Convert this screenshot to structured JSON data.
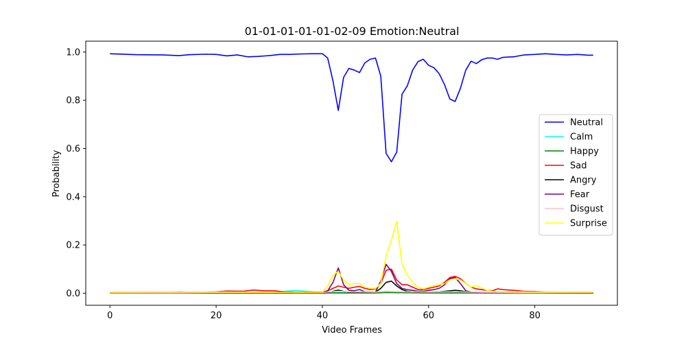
{
  "chart_data": {
    "type": "line",
    "title": "01-01-01-01-01-02-09 Emotion:Neutral",
    "xlabel": "Video Frames",
    "ylabel": "Probability",
    "xlim": [
      -4.55,
      95.55
    ],
    "ylim": [
      -0.05,
      1.045
    ],
    "xticks": [
      0,
      20,
      40,
      60,
      80
    ],
    "yticks": [
      0.0,
      0.2,
      0.4,
      0.6,
      0.8,
      1.0
    ],
    "xtick_labels": [
      "0",
      "20",
      "40",
      "60",
      "80"
    ],
    "ytick_labels": [
      "0.0",
      "0.2",
      "0.4",
      "0.6",
      "0.8",
      "1.0"
    ],
    "grid": false,
    "legend_position": "center-right",
    "series": [
      {
        "name": "Neutral",
        "color": "#0000ff",
        "points": [
          [
            0,
            0.993
          ],
          [
            5,
            0.989
          ],
          [
            10,
            0.988
          ],
          [
            13,
            0.985
          ],
          [
            15,
            0.989
          ],
          [
            18,
            0.991
          ],
          [
            20,
            0.99
          ],
          [
            22,
            0.984
          ],
          [
            24,
            0.988
          ],
          [
            26,
            0.98
          ],
          [
            28,
            0.982
          ],
          [
            30,
            0.985
          ],
          [
            32,
            0.99
          ],
          [
            34,
            0.99
          ],
          [
            36,
            0.992
          ],
          [
            38,
            0.993
          ],
          [
            40,
            0.993
          ],
          [
            41,
            0.975
          ],
          [
            42,
            0.88
          ],
          [
            43,
            0.758
          ],
          [
            44,
            0.895
          ],
          [
            45,
            0.932
          ],
          [
            46,
            0.925
          ],
          [
            47,
            0.915
          ],
          [
            48,
            0.955
          ],
          [
            49,
            0.97
          ],
          [
            50,
            0.975
          ],
          [
            51,
            0.9
          ],
          [
            52,
            0.58
          ],
          [
            53,
            0.545
          ],
          [
            54,
            0.585
          ],
          [
            55,
            0.825
          ],
          [
            56,
            0.86
          ],
          [
            57,
            0.925
          ],
          [
            58,
            0.96
          ],
          [
            59,
            0.97
          ],
          [
            60,
            0.945
          ],
          [
            61,
            0.935
          ],
          [
            62,
            0.91
          ],
          [
            63,
            0.865
          ],
          [
            64,
            0.805
          ],
          [
            65,
            0.795
          ],
          [
            66,
            0.85
          ],
          [
            67,
            0.925
          ],
          [
            68,
            0.962
          ],
          [
            69,
            0.952
          ],
          [
            70,
            0.968
          ],
          [
            71,
            0.975
          ],
          [
            72,
            0.975
          ],
          [
            73,
            0.97
          ],
          [
            74,
            0.978
          ],
          [
            76,
            0.98
          ],
          [
            78,
            0.988
          ],
          [
            80,
            0.99
          ],
          [
            82,
            0.993
          ],
          [
            84,
            0.99
          ],
          [
            86,
            0.988
          ],
          [
            88,
            0.99
          ],
          [
            90,
            0.987
          ],
          [
            91,
            0.987
          ]
        ]
      },
      {
        "name": "Calm",
        "color": "#00ffff",
        "points": [
          [
            0,
            0.002
          ],
          [
            10,
            0.003
          ],
          [
            13,
            0.007
          ],
          [
            15,
            0.005
          ],
          [
            20,
            0.004
          ],
          [
            25,
            0.004
          ],
          [
            30,
            0.003
          ],
          [
            33,
            0.008
          ],
          [
            35,
            0.011
          ],
          [
            38,
            0.006
          ],
          [
            40,
            0.003
          ],
          [
            42,
            0.002
          ],
          [
            50,
            0.002
          ],
          [
            55,
            0.002
          ],
          [
            60,
            0.002
          ],
          [
            65,
            0.002
          ],
          [
            70,
            0.002
          ],
          [
            80,
            0.003
          ],
          [
            85,
            0.005
          ],
          [
            91,
            0.004
          ]
        ]
      },
      {
        "name": "Happy",
        "color": "#008000",
        "points": [
          [
            0,
            0.001
          ],
          [
            20,
            0.001
          ],
          [
            40,
            0.001
          ],
          [
            50,
            0.001
          ],
          [
            52,
            0.003
          ],
          [
            55,
            0.002
          ],
          [
            60,
            0.001
          ],
          [
            70,
            0.001
          ],
          [
            80,
            0.001
          ],
          [
            91,
            0.001
          ]
        ]
      },
      {
        "name": "Sad",
        "color": "#ff0000",
        "points": [
          [
            0,
            0.002
          ],
          [
            10,
            0.003
          ],
          [
            15,
            0.003
          ],
          [
            20,
            0.006
          ],
          [
            22,
            0.009
          ],
          [
            25,
            0.008
          ],
          [
            27,
            0.013
          ],
          [
            29,
            0.01
          ],
          [
            31,
            0.01
          ],
          [
            33,
            0.005
          ],
          [
            36,
            0.004
          ],
          [
            40,
            0.005
          ],
          [
            41,
            0.01
          ],
          [
            42,
            0.02
          ],
          [
            43,
            0.03
          ],
          [
            44,
            0.025
          ],
          [
            45,
            0.02
          ],
          [
            46,
            0.025
          ],
          [
            47,
            0.028
          ],
          [
            48,
            0.02
          ],
          [
            49,
            0.015
          ],
          [
            50,
            0.018
          ],
          [
            51,
            0.04
          ],
          [
            52,
            0.095
          ],
          [
            53,
            0.1
          ],
          [
            54,
            0.055
          ],
          [
            55,
            0.035
          ],
          [
            56,
            0.035
          ],
          [
            57,
            0.025
          ],
          [
            58,
            0.015
          ],
          [
            59,
            0.015
          ],
          [
            60,
            0.02
          ],
          [
            61,
            0.025
          ],
          [
            62,
            0.03
          ],
          [
            63,
            0.045
          ],
          [
            64,
            0.065
          ],
          [
            65,
            0.07
          ],
          [
            66,
            0.06
          ],
          [
            67,
            0.04
          ],
          [
            68,
            0.025
          ],
          [
            69,
            0.018
          ],
          [
            70,
            0.015
          ],
          [
            71,
            0.012
          ],
          [
            72,
            0.01
          ],
          [
            73,
            0.018
          ],
          [
            74,
            0.015
          ],
          [
            76,
            0.012
          ],
          [
            78,
            0.008
          ],
          [
            80,
            0.007
          ],
          [
            82,
            0.005
          ],
          [
            84,
            0.005
          ],
          [
            86,
            0.004
          ],
          [
            88,
            0.004
          ],
          [
            91,
            0.003
          ]
        ]
      },
      {
        "name": "Angry",
        "color": "#000000",
        "points": [
          [
            0,
            0.001
          ],
          [
            20,
            0.001
          ],
          [
            40,
            0.001
          ],
          [
            41,
            0.003
          ],
          [
            42,
            0.008
          ],
          [
            43,
            0.013
          ],
          [
            44,
            0.008
          ],
          [
            45,
            0.005
          ],
          [
            46,
            0.005
          ],
          [
            48,
            0.004
          ],
          [
            50,
            0.005
          ],
          [
            51,
            0.02
          ],
          [
            52,
            0.045
          ],
          [
            53,
            0.05
          ],
          [
            54,
            0.03
          ],
          [
            55,
            0.015
          ],
          [
            56,
            0.008
          ],
          [
            58,
            0.004
          ],
          [
            60,
            0.005
          ],
          [
            62,
            0.006
          ],
          [
            63,
            0.008
          ],
          [
            64,
            0.01
          ],
          [
            65,
            0.012
          ],
          [
            66,
            0.01
          ],
          [
            67,
            0.006
          ],
          [
            68,
            0.004
          ],
          [
            70,
            0.003
          ],
          [
            75,
            0.002
          ],
          [
            80,
            0.002
          ],
          [
            91,
            0.001
          ]
        ]
      },
      {
        "name": "Fear",
        "color": "#800080",
        "points": [
          [
            0,
            0.001
          ],
          [
            20,
            0.001
          ],
          [
            40,
            0.001
          ],
          [
            41,
            0.01
          ],
          [
            42,
            0.045
          ],
          [
            43,
            0.105
          ],
          [
            44,
            0.035
          ],
          [
            45,
            0.012
          ],
          [
            46,
            0.01
          ],
          [
            47,
            0.015
          ],
          [
            48,
            0.006
          ],
          [
            50,
            0.005
          ],
          [
            51,
            0.05
          ],
          [
            52,
            0.12
          ],
          [
            53,
            0.09
          ],
          [
            54,
            0.04
          ],
          [
            55,
            0.02
          ],
          [
            56,
            0.015
          ],
          [
            57,
            0.012
          ],
          [
            58,
            0.008
          ],
          [
            59,
            0.008
          ],
          [
            60,
            0.012
          ],
          [
            61,
            0.015
          ],
          [
            62,
            0.02
          ],
          [
            63,
            0.035
          ],
          [
            64,
            0.06
          ],
          [
            65,
            0.065
          ],
          [
            66,
            0.04
          ],
          [
            67,
            0.01
          ],
          [
            68,
            0.005
          ],
          [
            70,
            0.003
          ],
          [
            75,
            0.002
          ],
          [
            80,
            0.002
          ],
          [
            91,
            0.001
          ]
        ]
      },
      {
        "name": "Disgust",
        "color": "#ffc0cb",
        "points": [
          [
            0,
            0.002
          ],
          [
            10,
            0.002
          ],
          [
            20,
            0.003
          ],
          [
            30,
            0.003
          ],
          [
            40,
            0.003
          ],
          [
            43,
            0.008
          ],
          [
            45,
            0.006
          ],
          [
            50,
            0.005
          ],
          [
            52,
            0.008
          ],
          [
            55,
            0.006
          ],
          [
            60,
            0.005
          ],
          [
            65,
            0.006
          ],
          [
            70,
            0.004
          ],
          [
            80,
            0.003
          ],
          [
            91,
            0.003
          ]
        ]
      },
      {
        "name": "Surprise",
        "color": "#ffff00",
        "points": [
          [
            0,
            0.005
          ],
          [
            10,
            0.006
          ],
          [
            20,
            0.005
          ],
          [
            30,
            0.004
          ],
          [
            35,
            0.003
          ],
          [
            40,
            0.004
          ],
          [
            41,
            0.03
          ],
          [
            42,
            0.075
          ],
          [
            43,
            0.09
          ],
          [
            44,
            0.055
          ],
          [
            45,
            0.035
          ],
          [
            46,
            0.04
          ],
          [
            47,
            0.04
          ],
          [
            48,
            0.025
          ],
          [
            49,
            0.02
          ],
          [
            50,
            0.02
          ],
          [
            51,
            0.04
          ],
          [
            52,
            0.155
          ],
          [
            53,
            0.22
          ],
          [
            54,
            0.298
          ],
          [
            55,
            0.12
          ],
          [
            56,
            0.075
          ],
          [
            57,
            0.045
          ],
          [
            58,
            0.025
          ],
          [
            59,
            0.018
          ],
          [
            60,
            0.025
          ],
          [
            61,
            0.03
          ],
          [
            62,
            0.035
          ],
          [
            63,
            0.04
          ],
          [
            64,
            0.055
          ],
          [
            65,
            0.06
          ],
          [
            66,
            0.055
          ],
          [
            67,
            0.04
          ],
          [
            68,
            0.025
          ],
          [
            69,
            0.032
          ],
          [
            70,
            0.022
          ],
          [
            71,
            0.012
          ],
          [
            72,
            0.008
          ],
          [
            74,
            0.006
          ],
          [
            76,
            0.006
          ],
          [
            80,
            0.005
          ],
          [
            85,
            0.005
          ],
          [
            91,
            0.005
          ]
        ]
      }
    ]
  }
}
